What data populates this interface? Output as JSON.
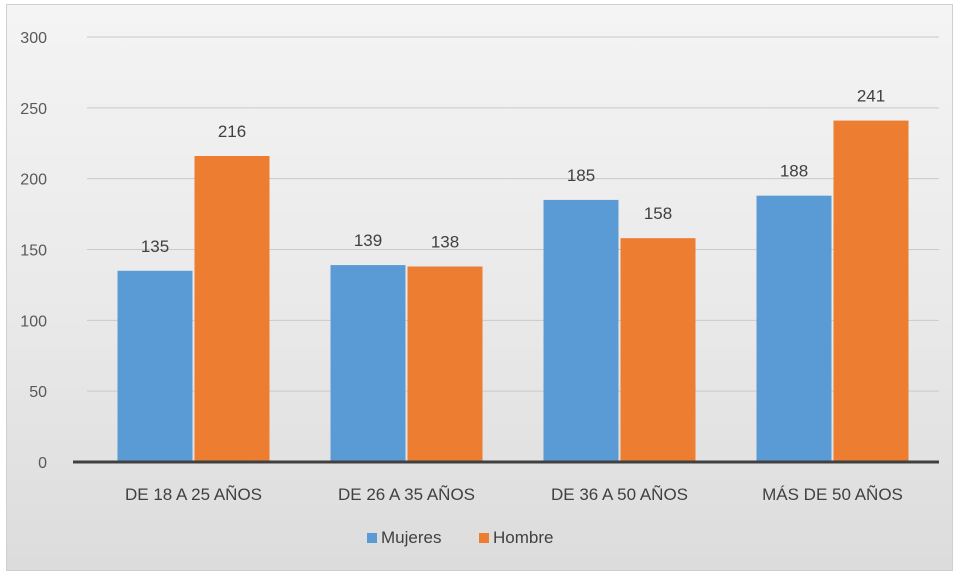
{
  "chart_data": {
    "type": "bar",
    "categories": [
      "DE 18 A 25 AÑOS",
      "DE 26 A 35 AÑOS",
      "DE 36 A 50 AÑOS",
      "MÁS DE 50 AÑOS"
    ],
    "series": [
      {
        "name": "Mujeres",
        "values": [
          135,
          139,
          185,
          188
        ],
        "color": "#5b9bd5"
      },
      {
        "name": "Hombre",
        "values": [
          216,
          138,
          158,
          241
        ],
        "color": "#ed7d31"
      }
    ],
    "title": "",
    "xlabel": "",
    "ylabel": "",
    "ylim": [
      0,
      300
    ],
    "yticks": [
      0,
      50,
      100,
      150,
      200,
      250,
      300
    ],
    "grid": true,
    "legend": "bottom",
    "data_labels": true
  }
}
